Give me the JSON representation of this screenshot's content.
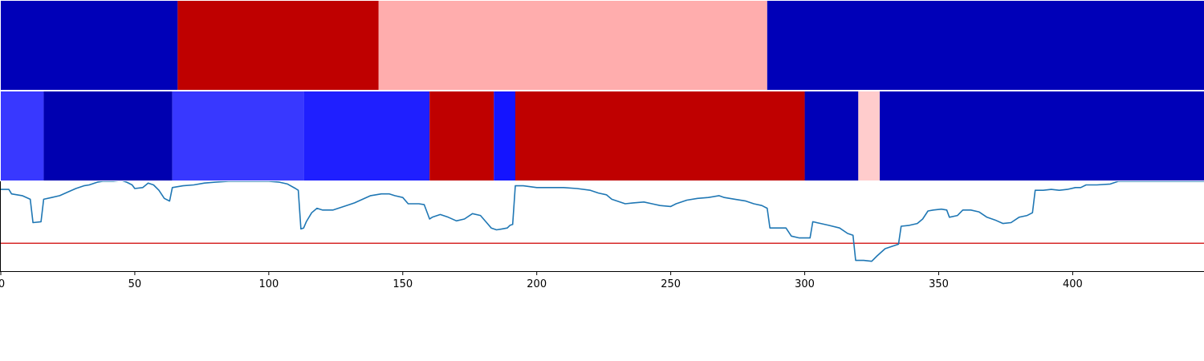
{
  "chart_data": [
    {
      "type": "heatmap",
      "colormap": "seismic",
      "value_range": [
        -1,
        1
      ],
      "segments": [
        {
          "start": 0,
          "end": 66,
          "value": -0.7
        },
        {
          "start": 66,
          "end": 141,
          "value": 0.75
        },
        {
          "start": 141,
          "end": 286,
          "value": 0.16
        },
        {
          "start": 286,
          "end": 449,
          "value": -0.7
        }
      ]
    },
    {
      "type": "heatmap",
      "colormap": "seismic",
      "value_range": [
        -1,
        1
      ],
      "segments": [
        {
          "start": 0,
          "end": 16,
          "value": -0.39
        },
        {
          "start": 16,
          "end": 64,
          "value": -0.72
        },
        {
          "start": 64,
          "end": 113,
          "value": -0.39
        },
        {
          "start": 113,
          "end": 160,
          "value": -0.44
        },
        {
          "start": 160,
          "end": 184,
          "value": 0.75
        },
        {
          "start": 184,
          "end": 192,
          "value": -0.46
        },
        {
          "start": 192,
          "end": 300,
          "value": 0.75
        },
        {
          "start": 300,
          "end": 320,
          "value": -0.7
        },
        {
          "start": 320,
          "end": 328,
          "value": 0.1
        },
        {
          "start": 328,
          "end": 449,
          "value": -0.7
        }
      ]
    },
    {
      "type": "line",
      "xlim": [
        0,
        449
      ],
      "ylim": [
        0,
        1
      ],
      "x_ticks": [
        0,
        50,
        100,
        150,
        200,
        250,
        300,
        350,
        400
      ],
      "threshold": {
        "value": 0.31,
        "color": "#d62728"
      },
      "series": [
        {
          "color": "#1f77b4",
          "points": [
            [
              0,
              0.91
            ],
            [
              3,
              0.91
            ],
            [
              4,
              0.86
            ],
            [
              8,
              0.84
            ],
            [
              11,
              0.8
            ],
            [
              12,
              0.54
            ],
            [
              15,
              0.55
            ],
            [
              16,
              0.8
            ],
            [
              19,
              0.82
            ],
            [
              22,
              0.84
            ],
            [
              25,
              0.88
            ],
            [
              28,
              0.92
            ],
            [
              31,
              0.95
            ],
            [
              33,
              0.96
            ],
            [
              36,
              0.99
            ],
            [
              38,
              1.0
            ],
            [
              42,
              1.0
            ],
            [
              45,
              1.01
            ],
            [
              47,
              0.99
            ],
            [
              49,
              0.96
            ],
            [
              50,
              0.92
            ],
            [
              53,
              0.93
            ],
            [
              55,
              0.98
            ],
            [
              57,
              0.96
            ],
            [
              59,
              0.9
            ],
            [
              61,
              0.81
            ],
            [
              63,
              0.78
            ],
            [
              64,
              0.93
            ],
            [
              66,
              0.94
            ],
            [
              68,
              0.95
            ],
            [
              72,
              0.96
            ],
            [
              76,
              0.98
            ],
            [
              80,
              0.99
            ],
            [
              85,
              1.0
            ],
            [
              95,
              1.0
            ],
            [
              100,
              1.0
            ],
            [
              104,
              0.99
            ],
            [
              107,
              0.97
            ],
            [
              110,
              0.92
            ],
            [
              111,
              0.9
            ],
            [
              112,
              0.47
            ],
            [
              113,
              0.48
            ],
            [
              114,
              0.55
            ],
            [
              116,
              0.65
            ],
            [
              118,
              0.7
            ],
            [
              120,
              0.68
            ],
            [
              124,
              0.68
            ],
            [
              128,
              0.72
            ],
            [
              132,
              0.76
            ],
            [
              135,
              0.8
            ],
            [
              138,
              0.84
            ],
            [
              140,
              0.85
            ],
            [
              142,
              0.86
            ],
            [
              145,
              0.86
            ],
            [
              147,
              0.84
            ],
            [
              150,
              0.82
            ],
            [
              152,
              0.75
            ],
            [
              156,
              0.75
            ],
            [
              158,
              0.74
            ],
            [
              160,
              0.58
            ],
            [
              161,
              0.6
            ],
            [
              164,
              0.63
            ],
            [
              167,
              0.6
            ],
            [
              170,
              0.56
            ],
            [
              173,
              0.58
            ],
            [
              176,
              0.64
            ],
            [
              179,
              0.62
            ],
            [
              181,
              0.55
            ],
            [
              183,
              0.48
            ],
            [
              185,
              0.46
            ],
            [
              187,
              0.47
            ],
            [
              189,
              0.48
            ],
            [
              190,
              0.51
            ],
            [
              191,
              0.52
            ],
            [
              192,
              0.95
            ],
            [
              195,
              0.95
            ],
            [
              200,
              0.93
            ],
            [
              205,
              0.93
            ],
            [
              210,
              0.93
            ],
            [
              215,
              0.92
            ],
            [
              220,
              0.9
            ],
            [
              223,
              0.87
            ],
            [
              226,
              0.85
            ],
            [
              228,
              0.8
            ],
            [
              230,
              0.78
            ],
            [
              233,
              0.75
            ],
            [
              236,
              0.76
            ],
            [
              240,
              0.77
            ],
            [
              243,
              0.75
            ],
            [
              246,
              0.73
            ],
            [
              250,
              0.72
            ],
            [
              252,
              0.75
            ],
            [
              256,
              0.79
            ],
            [
              260,
              0.81
            ],
            [
              264,
              0.82
            ],
            [
              268,
              0.84
            ],
            [
              270,
              0.82
            ],
            [
              274,
              0.8
            ],
            [
              278,
              0.78
            ],
            [
              281,
              0.75
            ],
            [
              284,
              0.73
            ],
            [
              286,
              0.7
            ],
            [
              287,
              0.48
            ],
            [
              290,
              0.48
            ],
            [
              293,
              0.48
            ],
            [
              295,
              0.39
            ],
            [
              298,
              0.37
            ],
            [
              302,
              0.37
            ],
            [
              303,
              0.55
            ],
            [
              306,
              0.53
            ],
            [
              309,
              0.51
            ],
            [
              313,
              0.48
            ],
            [
              316,
              0.42
            ],
            [
              318,
              0.4
            ],
            [
              319,
              0.12
            ],
            [
              322,
              0.12
            ],
            [
              325,
              0.11
            ],
            [
              327,
              0.17
            ],
            [
              330,
              0.25
            ],
            [
              333,
              0.28
            ],
            [
              335,
              0.3
            ],
            [
              336,
              0.5
            ],
            [
              339,
              0.51
            ],
            [
              342,
              0.53
            ],
            [
              344,
              0.58
            ],
            [
              346,
              0.67
            ],
            [
              348,
              0.68
            ],
            [
              351,
              0.69
            ],
            [
              353,
              0.68
            ],
            [
              354,
              0.6
            ],
            [
              357,
              0.62
            ],
            [
              359,
              0.68
            ],
            [
              362,
              0.68
            ],
            [
              365,
              0.66
            ],
            [
              368,
              0.6
            ],
            [
              371,
              0.57
            ],
            [
              374,
              0.53
            ],
            [
              377,
              0.54
            ],
            [
              380,
              0.6
            ],
            [
              383,
              0.62
            ],
            [
              385,
              0.65
            ],
            [
              386,
              0.9
            ],
            [
              389,
              0.9
            ],
            [
              392,
              0.91
            ],
            [
              395,
              0.9
            ],
            [
              398,
              0.91
            ],
            [
              401,
              0.93
            ],
            [
              403,
              0.93
            ],
            [
              405,
              0.96
            ],
            [
              409,
              0.96
            ],
            [
              414,
              0.97
            ],
            [
              417,
              1.0
            ],
            [
              425,
              1.0
            ],
            [
              435,
              1.0
            ],
            [
              449,
              1.0
            ]
          ]
        }
      ]
    }
  ]
}
